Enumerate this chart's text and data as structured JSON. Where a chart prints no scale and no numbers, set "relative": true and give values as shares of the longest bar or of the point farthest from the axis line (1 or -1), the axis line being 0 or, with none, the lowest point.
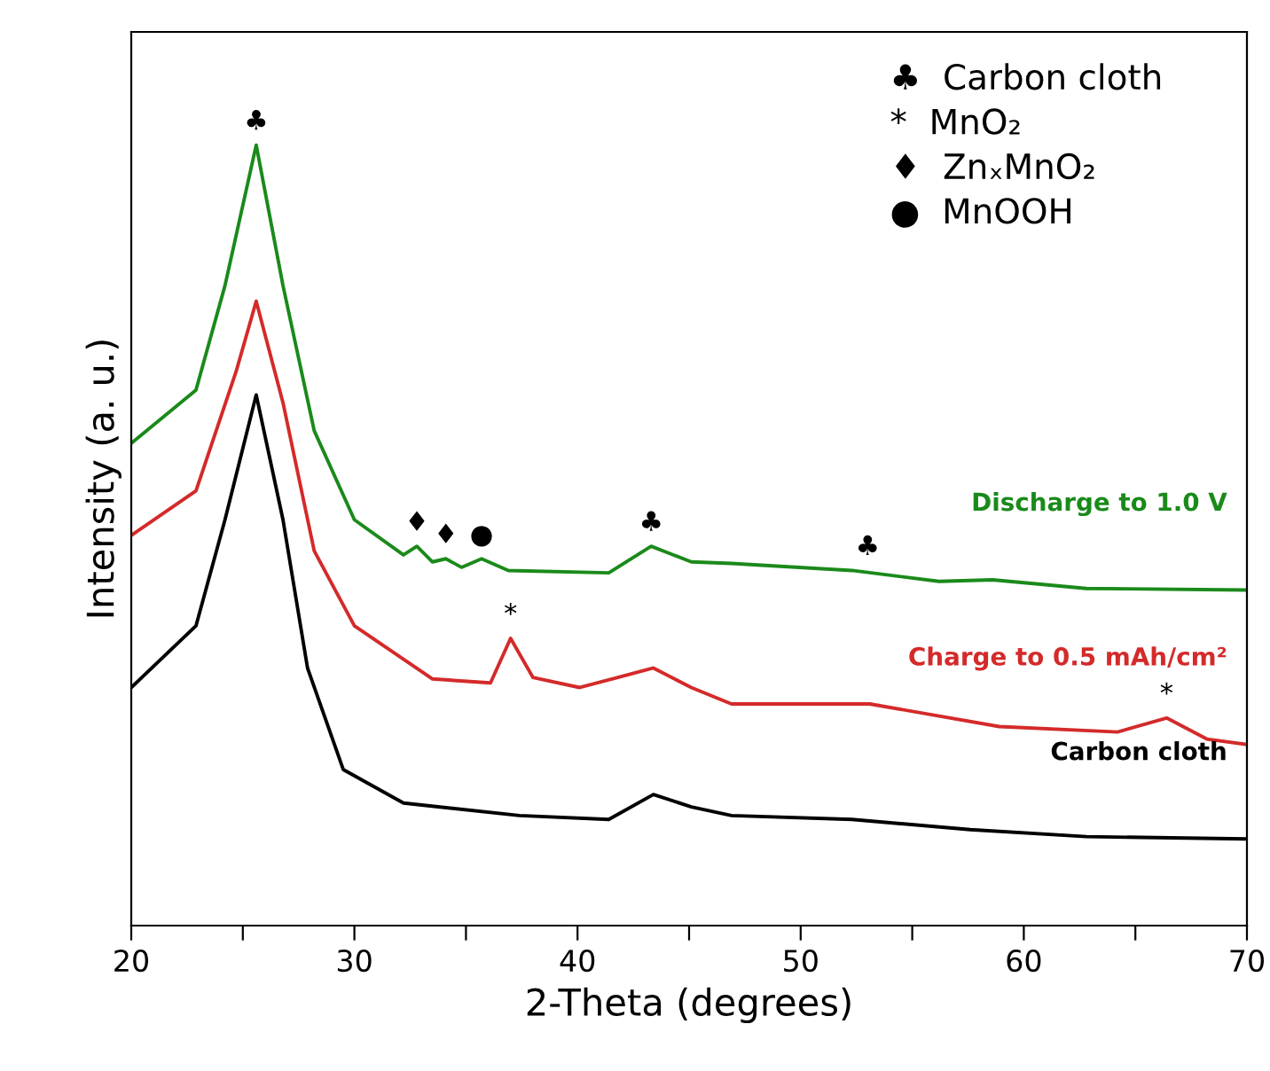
{
  "chart_data": {
    "type": "line",
    "relative": true,
    "xlabel": "2-Theta (degrees)",
    "ylabel": "Intensity (a. u.)",
    "xlim": [
      20,
      70
    ],
    "xticks": [
      20,
      {
        "value": 25,
        "label": null
      },
      30,
      {
        "value": 35,
        "label": null
      },
      40,
      {
        "value": 45,
        "label": null
      },
      50,
      {
        "value": 55,
        "label": null
      },
      60,
      {
        "value": 65,
        "label": null
      },
      70
    ],
    "legend": false,
    "grid": false,
    "marker": "none",
    "line_style": "solid",
    "series": [
      {
        "name": "Discharge to 1.0 V",
        "color": "#1a8a1a",
        "x": [
          20,
          22.9,
          24.2,
          25.6,
          26.8,
          28.2,
          30.0,
          32.2,
          32.8,
          33.5,
          34.1,
          34.8,
          35.7,
          36.9,
          41.4,
          43.3,
          45.1,
          46.9,
          52.3,
          56.2,
          58.6,
          62.8,
          70
        ],
        "values": [
          0.618,
          0.686,
          0.82,
          1.0,
          0.82,
          0.634,
          0.52,
          0.475,
          0.486,
          0.466,
          0.47,
          0.459,
          0.47,
          0.455,
          0.452,
          0.486,
          0.466,
          0.464,
          0.455,
          0.441,
          0.443,
          0.432,
          0.43
        ]
      },
      {
        "name": "Charge to 0.5 mAh/cm²",
        "color": "#d42a2a",
        "x": [
          20,
          22.9,
          24.7,
          25.6,
          26.8,
          28.2,
          30.0,
          33.5,
          36.1,
          37.0,
          38.0,
          40.1,
          43.4,
          45.1,
          46.9,
          53.1,
          58.9,
          64.2,
          66.4,
          68.2,
          70
        ],
        "values": [
          0.5,
          0.557,
          0.71,
          0.8,
          0.67,
          0.48,
          0.384,
          0.316,
          0.311,
          0.368,
          0.318,
          0.305,
          0.33,
          0.305,
          0.284,
          0.284,
          0.255,
          0.248,
          0.266,
          0.239,
          0.232
        ]
      },
      {
        "name": "Carbon cloth",
        "color": "#000000",
        "x": [
          20,
          22.9,
          24.2,
          25.6,
          26.8,
          27.9,
          29.5,
          32.2,
          37.4,
          41.4,
          43.4,
          45.1,
          46.9,
          52.3,
          57.6,
          62.8,
          70
        ],
        "values": [
          0.305,
          0.384,
          0.52,
          0.68,
          0.52,
          0.33,
          0.2,
          0.157,
          0.141,
          0.136,
          0.168,
          0.152,
          0.141,
          0.136,
          0.123,
          0.114,
          0.111
        ]
      }
    ],
    "annotations": [
      "♣  Carbon cloth",
      "*  MnO₂",
      "♦  ZnₓMnO₂",
      "●  MnOOH",
      {
        "text": "♣",
        "x": 25.6,
        "y": 1.0
      },
      {
        "text": "♦",
        "x": 32.8,
        "y": 0.486
      },
      {
        "text": "♦",
        "x": 34.1,
        "y": 0.47
      },
      {
        "text": "●",
        "x": 35.7,
        "y": 0.47
      },
      {
        "text": "♣",
        "x": 43.3,
        "y": 0.486
      },
      {
        "text": "♣",
        "x": 53.0,
        "y": 0.455
      },
      {
        "text": "*",
        "x": 37.0,
        "y": 0.368
      },
      {
        "text": "*",
        "x": 66.4,
        "y": 0.266
      }
    ]
  }
}
